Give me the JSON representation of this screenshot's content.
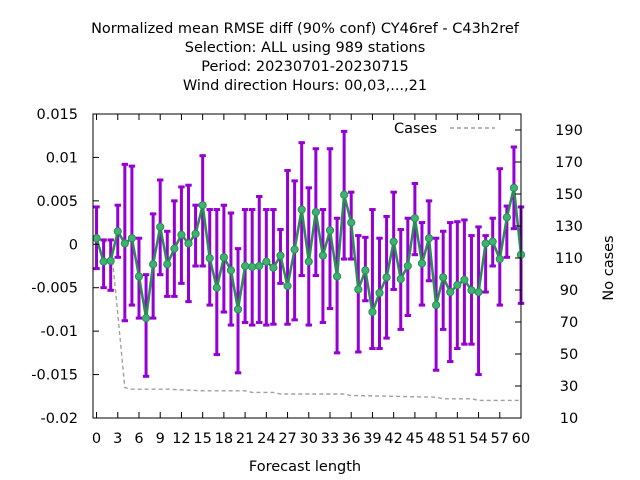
{
  "chart_data": {
    "type": "line",
    "title_lines": [
      "Normalized mean RMSE diff (90% conf) CY46ref - C43h2ref",
      "Selection: ALL using   989 stations",
      "Period: 20230701-20230715",
      "Wind direction   Hours:  00,03,...,21"
    ],
    "xlabel": "Forecast length",
    "ylabel_right": "No cases",
    "xlim": [
      -0.5,
      60
    ],
    "ylim": [
      -0.02,
      0.015
    ],
    "y2lim": [
      10,
      200
    ],
    "x_ticks": [
      0,
      3,
      6,
      9,
      12,
      15,
      18,
      21,
      24,
      27,
      30,
      33,
      36,
      39,
      42,
      45,
      48,
      51,
      54,
      57,
      60
    ],
    "x_tick_labels": [
      "0",
      "3",
      "6",
      "9",
      "12",
      "15",
      "18",
      "21",
      "24",
      "27",
      "30",
      "33",
      "36",
      "39",
      "42",
      "45",
      "48",
      "51",
      "54",
      "57",
      "60"
    ],
    "y_ticks": [
      -0.02,
      -0.015,
      -0.01,
      -0.005,
      0,
      0.005,
      0.01,
      0.015
    ],
    "y_tick_labels": [
      "-0.02",
      "-0.015",
      "-0.01",
      "-0.005",
      "0",
      "0.005",
      "0.01",
      "0.015"
    ],
    "y2_ticks": [
      10,
      30,
      50,
      70,
      90,
      110,
      130,
      150,
      170,
      190
    ],
    "y2_tick_labels": [
      "10",
      "30",
      "50",
      "70",
      "90",
      "110",
      "130",
      "150",
      "170",
      "190"
    ],
    "legend": {
      "label": "Cases",
      "placement": "top-right"
    },
    "grid": false,
    "colors": {
      "errorbar": "#9400d3",
      "mean": "#2e8b57",
      "marker": "#3cb371",
      "cases": "#a0a0a0",
      "axis": "#000000"
    },
    "series": [
      {
        "x": [
          0,
          1,
          2,
          3,
          4,
          5,
          6,
          7,
          8,
          9,
          10,
          11,
          12,
          13,
          14,
          15,
          16,
          17,
          18,
          19,
          20,
          21,
          22,
          23,
          24,
          25,
          26,
          27,
          28,
          29,
          30,
          31,
          32,
          33,
          34,
          35,
          36,
          37,
          38,
          39,
          40,
          41,
          42,
          43,
          44,
          45,
          46,
          47,
          48,
          49,
          50,
          51,
          52,
          53,
          54,
          55,
          56,
          57,
          58,
          59,
          60
        ],
        "mean": [
          0.0007,
          -0.002,
          -0.0019,
          0.0015,
          0.0001,
          0.0007,
          -0.0037,
          -0.0085,
          -0.0023,
          0.002,
          -0.0023,
          -0.0005,
          0.0011,
          0.0001,
          0.0012,
          0.0045,
          -0.0016,
          -0.005,
          -0.0015,
          -0.003,
          -0.0075,
          -0.0025,
          -0.0026,
          -0.0025,
          -0.002,
          -0.0027,
          -0.0013,
          -0.0048,
          -0.0006,
          0.004,
          -0.002,
          0.0037,
          -0.0013,
          0.0016,
          -0.0037,
          0.0057,
          0.0025,
          -0.0052,
          -0.003,
          -0.0078,
          -0.0056,
          -0.0038,
          0.0003,
          -0.004,
          -0.0025,
          0.003,
          -0.0022,
          0.0007,
          -0.007,
          -0.0038,
          -0.0055,
          -0.0047,
          -0.0041,
          -0.0053,
          -0.0055,
          0.0001,
          0.0003,
          -0.0017,
          0.0031,
          0.0065,
          -0.0012
        ],
        "upper": [
          0.0043,
          0.0005,
          0.0005,
          0.0045,
          0.0092,
          0.009,
          0.0007,
          -0.0035,
          0.0035,
          0.0074,
          0.0015,
          0.005,
          0.0066,
          0.0068,
          0.0045,
          0.0102,
          0.004,
          0.004,
          0.0045,
          0.0036,
          -0.0005,
          0.004,
          0.004,
          0.0055,
          0.004,
          0.004,
          0.0017,
          0.0085,
          0.0073,
          0.0117,
          0.0065,
          0.011,
          0.004,
          0.011,
          0.003,
          0.013,
          0.006,
          0.001,
          0.0008,
          0.004,
          0.0007,
          0.0032,
          0.006,
          0.0017,
          0.003,
          0.007,
          0.0025,
          0.005,
          0.0007,
          0.0015,
          0.0025,
          0.0026,
          0.0028,
          0.001,
          0.002,
          0.001,
          0.003,
          0.0087,
          0.0044,
          0.0112,
          0.0043
        ],
        "lower": [
          -0.0028,
          -0.005,
          -0.0053,
          -0.0015,
          -0.0088,
          -0.007,
          -0.0085,
          -0.0152,
          -0.0085,
          -0.0035,
          -0.006,
          -0.006,
          -0.0045,
          -0.0066,
          -0.0025,
          -0.0025,
          -0.007,
          -0.0127,
          -0.0078,
          -0.0093,
          -0.0148,
          -0.009,
          -0.0093,
          -0.009,
          -0.0093,
          -0.0092,
          -0.0045,
          -0.0092,
          -0.0087,
          -0.0036,
          -0.0093,
          -0.0036,
          -0.009,
          -0.0074,
          -0.0125,
          -0.0017,
          -0.0017,
          -0.0124,
          -0.0065,
          -0.012,
          -0.012,
          -0.0108,
          -0.0052,
          -0.0098,
          -0.0082,
          -0.0012,
          -0.007,
          -0.0042,
          -0.0145,
          -0.0098,
          -0.0135,
          -0.012,
          -0.0115,
          -0.0115,
          -0.015,
          -0.0055,
          -0.0025,
          -0.007,
          -0.0015,
          0.0018,
          -0.0068
        ]
      }
    ],
    "cases": {
      "x": [
        0,
        1,
        2,
        3,
        4,
        5,
        6,
        8,
        10,
        15,
        16,
        20,
        21,
        22,
        24,
        25,
        26,
        28,
        35,
        36,
        37,
        48,
        49,
        53,
        54,
        57,
        60
      ],
      "values": [
        123,
        120,
        120,
        75,
        29,
        28,
        28,
        28,
        28,
        27,
        27,
        27,
        27,
        26,
        26,
        26,
        25,
        25,
        25,
        24,
        24,
        23,
        22,
        22,
        21,
        21,
        21
      ]
    }
  }
}
